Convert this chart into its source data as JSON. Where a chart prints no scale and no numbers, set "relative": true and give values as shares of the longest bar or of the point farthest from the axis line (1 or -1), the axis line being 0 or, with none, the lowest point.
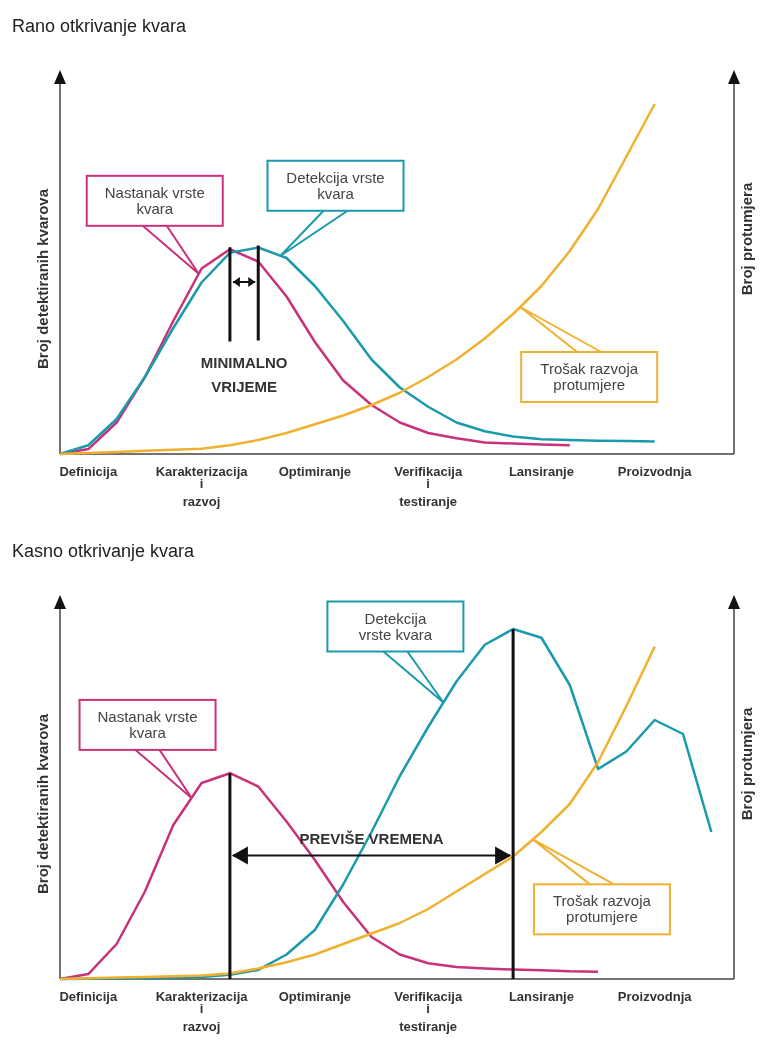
{
  "chart_data": [
    {
      "type": "line",
      "title": "Rano otkrivanje kvara",
      "ylabel": "Broj detektiranih kvarova",
      "y2label": "Broj protumjera",
      "relative": true,
      "legend": false,
      "marker": "none",
      "line_style": "solid",
      "categories": [
        null,
        "Definicija",
        null,
        null,
        null,
        "Karakterizacija\ni\nrazvoj",
        null,
        null,
        null,
        "Optimiranje",
        null,
        null,
        null,
        "Verifikacija\ni\ntestiranje",
        null,
        null,
        null,
        "Lansiranje",
        null,
        null,
        null,
        "Proizvodnja",
        null,
        null
      ],
      "series": [
        {
          "color": "#c8327a",
          "values": [
            0,
            0.014,
            0.09,
            0.22,
            0.38,
            0.53,
            0.585,
            0.55,
            0.45,
            0.32,
            0.21,
            0.14,
            0.09,
            0.06,
            0.045,
            0.033,
            0.03,
            0.027,
            0.025,
            null,
            null,
            null,
            null,
            null
          ]
        },
        {
          "color": "#1a9aaa",
          "values": [
            0,
            0.025,
            0.1,
            0.22,
            0.36,
            0.49,
            0.575,
            0.59,
            0.56,
            0.48,
            0.38,
            0.27,
            0.19,
            0.135,
            0.09,
            0.065,
            0.05,
            0.042,
            0.04,
            0.038,
            0.037,
            0.036,
            null,
            null
          ]
        },
        {
          "color": "#f0b030",
          "values": [
            0,
            0.003,
            0.006,
            0.009,
            0.012,
            0.015,
            0.025,
            0.04,
            0.06,
            0.085,
            0.11,
            0.14,
            0.175,
            0.22,
            0.27,
            0.33,
            0.4,
            0.48,
            0.58,
            0.7,
            0.85,
            1,
            null,
            null
          ]
        }
      ],
      "annotations": [
        "Nastanak vrste kvara",
        "Detekcija vrste kvara",
        "Trošak razvoja protumjere",
        "MINIMALNO VRIJEME"
      ]
    },
    {
      "type": "line",
      "title": "Kasno otkrivanje kvara",
      "ylabel": "Broj detektiranih kvarova",
      "y2label": "Broj protumjera",
      "relative": true,
      "legend": false,
      "marker": "none",
      "line_style": "solid",
      "categories": [
        null,
        "Definicija",
        null,
        null,
        null,
        "Karakterizacija\ni\nrazvoj",
        null,
        null,
        null,
        "Optimiranje",
        null,
        null,
        null,
        "Verifikacija\ni\ntestiranje",
        null,
        null,
        null,
        "Lansiranje",
        null,
        null,
        null,
        "Proizvodnja",
        null,
        null
      ],
      "series": [
        {
          "color": "#c8327a",
          "values": [
            0,
            0.014,
            0.1,
            0.25,
            0.44,
            0.56,
            0.588,
            0.55,
            0.45,
            0.34,
            0.22,
            0.12,
            0.07,
            0.045,
            0.034,
            0.03,
            0.027,
            0.025,
            0.022,
            0.021,
            null,
            null,
            null,
            null
          ]
        },
        {
          "color": "#1a9aaa",
          "values": [
            0,
            0.001,
            0.002,
            0.003,
            0.004,
            0.006,
            0.012,
            0.026,
            0.07,
            0.14,
            0.27,
            0.42,
            0.58,
            0.72,
            0.85,
            0.955,
            1,
            0.975,
            0.84,
            0.6,
            0.65,
            0.74,
            0.7,
            0.42
          ]
        },
        {
          "color": "#f0b030",
          "values": [
            0,
            0.002,
            0.004,
            0.006,
            0.008,
            0.01,
            0.016,
            0.03,
            0.048,
            0.07,
            0.1,
            0.13,
            0.16,
            0.2,
            0.25,
            0.3,
            0.35,
            0.42,
            0.5,
            0.62,
            0.78,
            0.95,
            null,
            null
          ]
        }
      ],
      "annotations": [
        "Nastanak vrste kvara",
        "Detekcija vrste kvara",
        "Trošak razvoja protumjere",
        "PREVIŠE VREMENA"
      ]
    }
  ]
}
